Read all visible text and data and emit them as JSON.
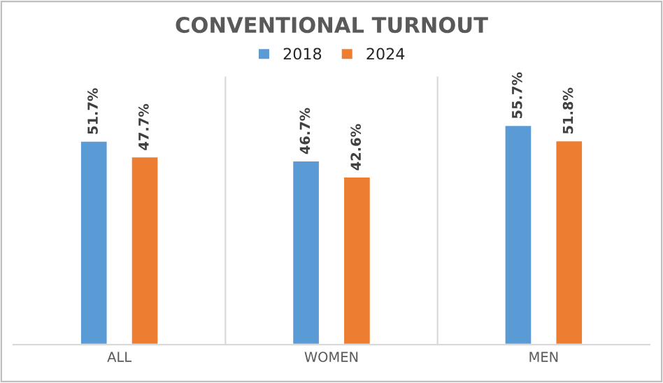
{
  "chart_data": {
    "type": "bar",
    "title": "CONVENTIONAL TURNOUT",
    "categories": [
      "ALL",
      "WOMEN",
      "MEN"
    ],
    "series": [
      {
        "name": "2018",
        "color": "#5b9bd5",
        "values": [
          51.7,
          46.7,
          55.7
        ],
        "value_labels": [
          "51.7%",
          "46.7%",
          "55.7%"
        ]
      },
      {
        "name": "2024",
        "color": "#ed7d31",
        "values": [
          47.7,
          42.6,
          51.8
        ],
        "value_labels": [
          "47.7%",
          "42.6%",
          "51.8%"
        ]
      }
    ],
    "grid": "x",
    "legend": "top",
    "tick_labels": "x"
  }
}
